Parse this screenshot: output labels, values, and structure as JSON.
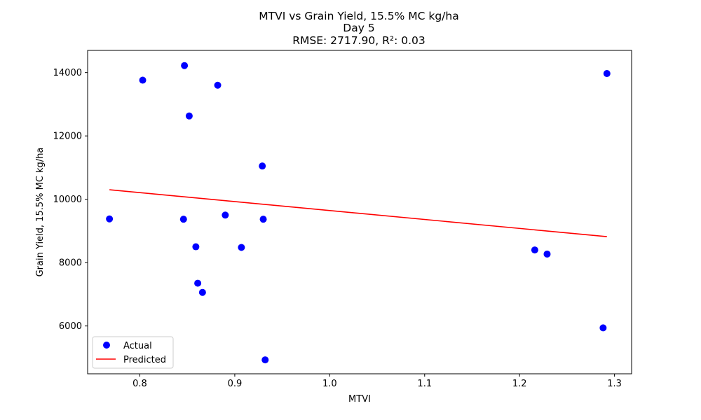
{
  "chart_data": {
    "type": "scatter",
    "title_lines": [
      "MTVI vs Grain Yield, 15.5% MC kg/ha",
      "Day 5",
      "RMSE: 2717.90, R²: 0.03"
    ],
    "xlabel": "MTVI",
    "ylabel": "Grain Yield, 15.5% MC kg/ha",
    "xlim": [
      0.745,
      1.318
    ],
    "ylim": [
      4490,
      14700
    ],
    "xticks": [
      0.8,
      0.9,
      1.0,
      1.1,
      1.2,
      1.3
    ],
    "xtick_labels": [
      "0.8",
      "0.9",
      "1.0",
      "1.1",
      "1.2",
      "1.3"
    ],
    "yticks": [
      6000,
      8000,
      10000,
      12000,
      14000
    ],
    "ytick_labels": [
      "6000",
      "8000",
      "10000",
      "12000",
      "14000"
    ],
    "grid": false,
    "legend_position": "lower-left",
    "series": [
      {
        "name": "Actual",
        "kind": "scatter",
        "color": "#0000ff",
        "points": [
          [
            0.768,
            9380
          ],
          [
            0.803,
            13760
          ],
          [
            0.846,
            9370
          ],
          [
            0.847,
            14220
          ],
          [
            0.852,
            12630
          ],
          [
            0.859,
            8500
          ],
          [
            0.861,
            7350
          ],
          [
            0.866,
            7060
          ],
          [
            0.882,
            13600
          ],
          [
            0.89,
            9500
          ],
          [
            0.907,
            8480
          ],
          [
            0.929,
            11050
          ],
          [
            0.93,
            9370
          ],
          [
            0.932,
            4930
          ],
          [
            1.216,
            8400
          ],
          [
            1.229,
            8270
          ],
          [
            1.288,
            5940
          ],
          [
            1.292,
            13970
          ]
        ]
      },
      {
        "name": "Predicted",
        "kind": "line",
        "color": "#ff0000",
        "points": [
          [
            0.768,
            10300
          ],
          [
            1.292,
            8820
          ]
        ]
      }
    ]
  }
}
